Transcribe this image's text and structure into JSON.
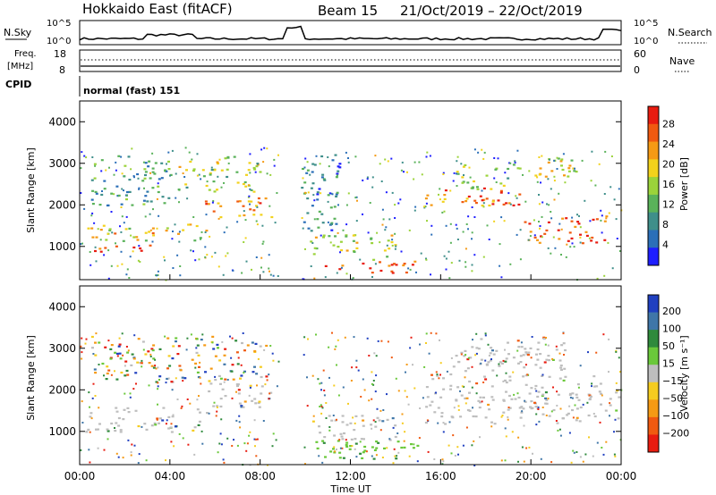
{
  "header": {
    "title_left": "Hokkaido East (fitACF)",
    "title_beam": "Beam 15",
    "title_dates": "21/Oct/2019 – 22/Oct/2019"
  },
  "panels": {
    "nsky_label": "N.Sky",
    "nsky_ticks_left": [
      "10^5",
      "10^0"
    ],
    "nsearch_label": "N.Search",
    "nsearch_ticks_right": [
      "10^5",
      "10^0"
    ],
    "freq_label_1": "Freq.",
    "freq_label_2": "[MHz]",
    "freq_ticks": [
      "18",
      "8"
    ],
    "nave_label": "Nave",
    "nave_ticks": [
      "60",
      "0"
    ],
    "cpid_label": "CPID",
    "cpid_text": "normal (fast) 151"
  },
  "chart_data": [
    {
      "type": "heatmap",
      "name": "power",
      "ylabel": "Slant Range [km]",
      "yticks": [
        "1000",
        "2000",
        "3000",
        "4000"
      ],
      "ylim": [
        200,
        4500
      ],
      "xlim_hours": [
        0,
        24
      ],
      "colorbar_label": "Power [dB]",
      "colorbar_ticks": [
        "4",
        "8",
        "12",
        "16",
        "20",
        "24",
        "28"
      ],
      "colorbar_colors": [
        "#1e1eff",
        "#2b6fb8",
        "#3f8f8a",
        "#5ab25a",
        "#9bd33a",
        "#f2d21c",
        "#f59a14",
        "#f05a10",
        "#e81c10"
      ],
      "bands": [
        {
          "t": [
            0.2,
            5.6
          ],
          "r": [
            1150,
            1550
          ],
          "level": 0.6
        },
        {
          "t": [
            0.3,
            3.2
          ],
          "r": [
            850,
            1050
          ],
          "level": 0.9
        },
        {
          "t": [
            5.5,
            8.6
          ],
          "r": [
            1700,
            2200
          ],
          "level": 0.8
        },
        {
          "t": [
            4.2,
            8.2
          ],
          "r": [
            2300,
            3200
          ],
          "level": 0.5
        },
        {
          "t": [
            0.5,
            4.0
          ],
          "r": [
            2000,
            3200
          ],
          "level": 0.3
        },
        {
          "t": [
            10.5,
            15.0
          ],
          "r": [
            350,
            700
          ],
          "level": 0.9
        },
        {
          "t": [
            10.2,
            14.0
          ],
          "r": [
            700,
            1300
          ],
          "level": 0.55
        },
        {
          "t": [
            15.3,
            19.5
          ],
          "r": [
            2000,
            2450
          ],
          "level": 0.8
        },
        {
          "t": [
            19.5,
            23.3
          ],
          "r": [
            1100,
            1750
          ],
          "level": 0.95
        },
        {
          "t": [
            16.5,
            19.5
          ],
          "r": [
            2400,
            3000
          ],
          "level": 0.45
        },
        {
          "t": [
            20.0,
            22.0
          ],
          "r": [
            2600,
            3200
          ],
          "level": 0.6
        },
        {
          "t": [
            9.8,
            11.5
          ],
          "r": [
            1400,
            3300
          ],
          "level": 0.2
        }
      ]
    },
    {
      "type": "heatmap",
      "name": "velocity",
      "xlabel": "Time UT",
      "ylabel": "Slant Range [km]",
      "yticks": [
        "1000",
        "2000",
        "3000",
        "4000"
      ],
      "xticks": [
        "00:00",
        "04:00",
        "08:00",
        "12:00",
        "16:00",
        "20:00",
        "00:00"
      ],
      "ylim": [
        200,
        4500
      ],
      "xlim_hours": [
        0,
        24
      ],
      "colorbar_label": "Velocity [m s⁻¹]",
      "colorbar_ticks": [
        "200",
        "100",
        "50",
        "15",
        "−15",
        "−50",
        "−100",
        "−200"
      ],
      "colorbar_colors": [
        "#2040c0",
        "#3f76a8",
        "#2f8a3c",
        "#6ac83a",
        "#bebebe",
        "#f5cc20",
        "#f59a14",
        "#f05a10",
        "#e81c10"
      ],
      "bands": [
        {
          "t": [
            0.2,
            5.6
          ],
          "r": [
            1000,
            1600
          ],
          "v": "gray"
        },
        {
          "t": [
            5.5,
            8.6
          ],
          "r": [
            1600,
            2200
          ],
          "v": "gray"
        },
        {
          "t": [
            10.3,
            15.0
          ],
          "r": [
            350,
            800
          ],
          "v": "green"
        },
        {
          "t": [
            10.2,
            14.0
          ],
          "r": [
            800,
            1400
          ],
          "v": "gray"
        },
        {
          "t": [
            15.3,
            23.9
          ],
          "r": [
            1200,
            2400
          ],
          "v": "gray"
        },
        {
          "t": [
            16.5,
            21.5
          ],
          "r": [
            2400,
            3300
          ],
          "v": "gray"
        },
        {
          "t": [
            0.5,
            8.5
          ],
          "r": [
            2200,
            3300
          ],
          "v": "mixed"
        }
      ]
    }
  ]
}
